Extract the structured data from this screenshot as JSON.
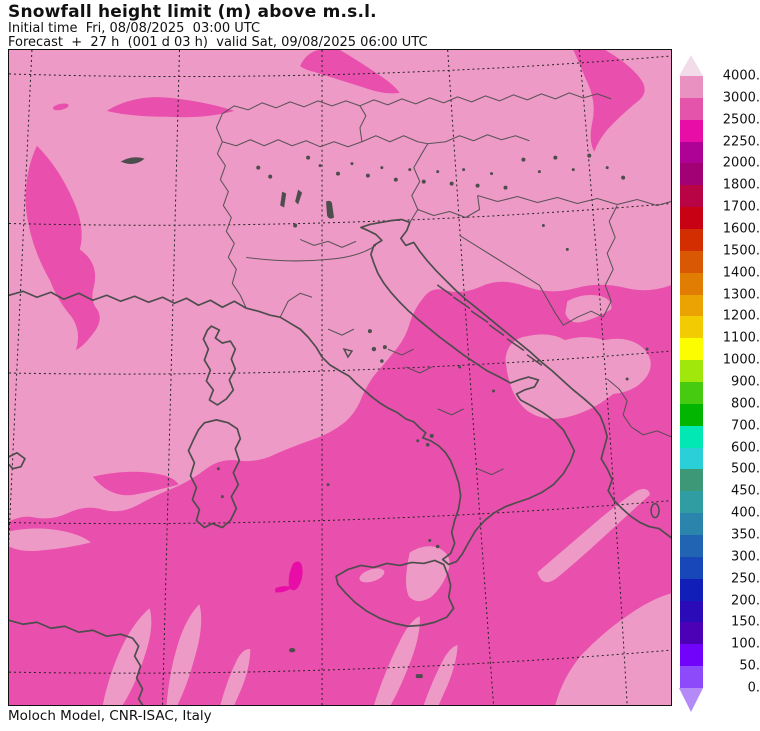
{
  "header": {
    "title": "Snowfall height limit (m) above m.s.l.",
    "initial_time_line": "Initial time  Fri, 08/08/2025  03:00 UTC",
    "forecast_line": "Forecast  +  27 h  (001 d 03 h)  valid Sat, 09/08/2025 06:00 UTC"
  },
  "footer": {
    "attribution": "Moloch Model, CNR-ISAC, Italy"
  },
  "colorbar": {
    "unit": "m",
    "tick_labels": [
      "4000.",
      "3000.",
      "2500.",
      "2250.",
      "2000.",
      "1800.",
      "1700.",
      "1600.",
      "1500.",
      "1400.",
      "1300.",
      "1200.",
      "1100.",
      "1000.",
      "900.",
      "800.",
      "700.",
      "600.",
      "500.",
      "450.",
      "400.",
      "350.",
      "300.",
      "250.",
      "200.",
      "150.",
      "100.",
      "50.",
      "0."
    ],
    "band_colors_top_to_bottom": [
      "#e992c2",
      "#e554ab",
      "#e90da8",
      "#ad0295",
      "#a10175",
      "#b80345",
      "#c90114",
      "#d32d02",
      "#d95803",
      "#e17d02",
      "#eba303",
      "#f2cb02",
      "#fdfd02",
      "#a2e70b",
      "#47cb10",
      "#01b501",
      "#01e8b5",
      "#2acfd7",
      "#3d9878",
      "#2f9da2",
      "#2a84ac",
      "#2264b4",
      "#1747b8",
      "#111fb8",
      "#2b0bb8",
      "#4d01b6",
      "#7203fa",
      "#8d4afa"
    ],
    "above_max_arrow_color": "#f3dcea",
    "below_min_arrow_color": "#b38af8"
  },
  "map": {
    "colors": {
      "snow_limit_3000_4000": "#ee9ac6",
      "snow_limit_2500_3000": "#e94fad",
      "snow_limit_2250_2500": "#e90da8",
      "coastline": "#4d4d4d"
    },
    "region": "Italy and central Mediterranean",
    "graticule": "dotted lat/lon grid"
  }
}
